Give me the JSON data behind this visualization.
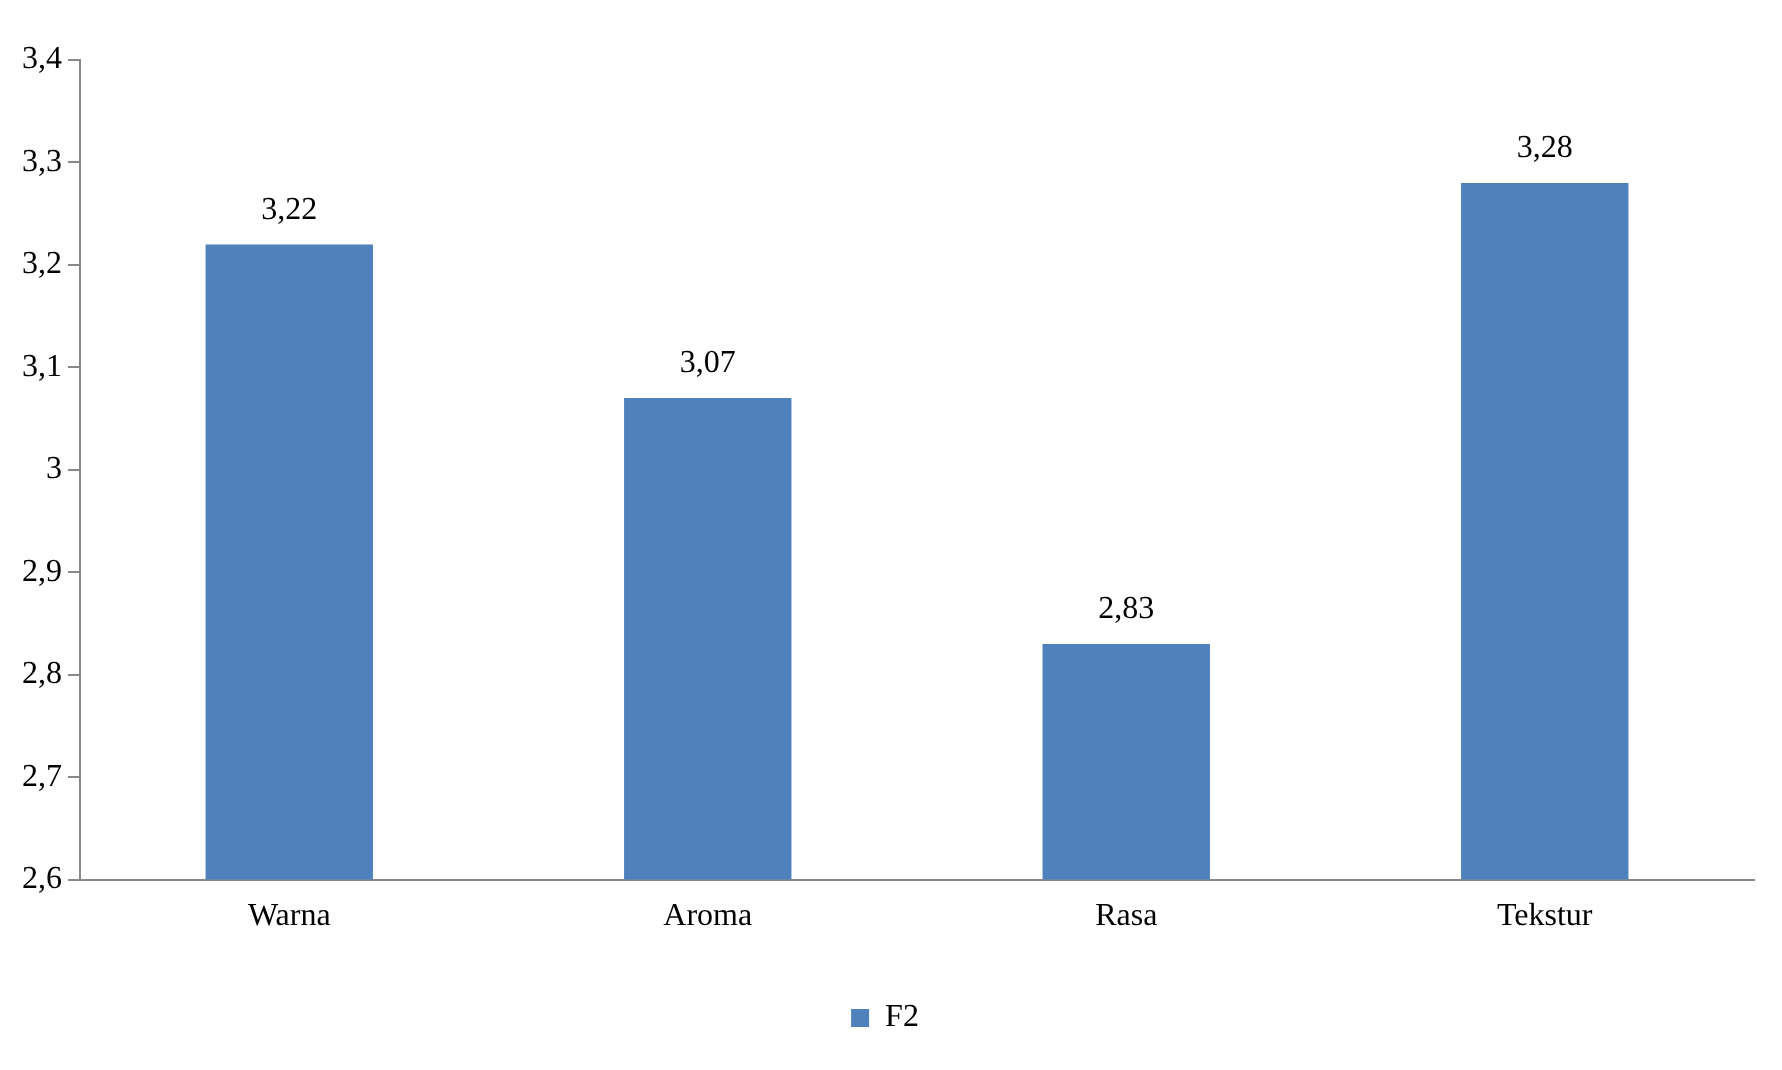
{
  "chart_data": {
    "type": "bar",
    "categories": [
      "Warna",
      "Aroma",
      "Rasa",
      "Tekstur"
    ],
    "series": [
      {
        "name": "F2",
        "color": "#4f81bd",
        "values": [
          3.22,
          3.07,
          2.83,
          3.28
        ],
        "value_labels": [
          "3,22",
          "3,07",
          "2,83",
          "3,28"
        ]
      }
    ],
    "ylim": [
      2.6,
      3.4
    ],
    "yticks": [
      {
        "value": 2.6,
        "label": "2,6"
      },
      {
        "value": 2.7,
        "label": "2,7"
      },
      {
        "value": 2.8,
        "label": "2,8"
      },
      {
        "value": 2.9,
        "label": "2,9"
      },
      3,
      {
        "value": 3.1,
        "label": "3,1"
      },
      {
        "value": 3.2,
        "label": "3,2"
      },
      {
        "value": 3.3,
        "label": "3,3"
      },
      {
        "value": 3.4,
        "label": "3,4"
      }
    ],
    "grid": false,
    "legend": "bottom"
  }
}
